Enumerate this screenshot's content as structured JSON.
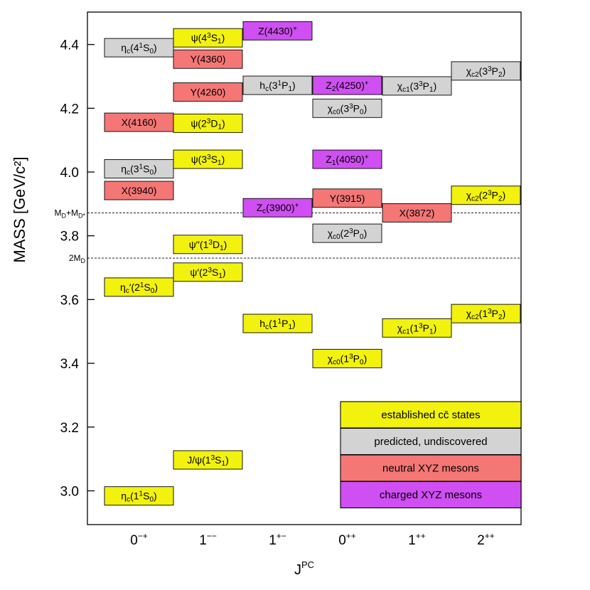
{
  "chart_data": {
    "type": "level-diagram",
    "title": "",
    "xlabel": "J^PC",
    "ylabel": "MASS  [GeV/c²]",
    "ylim": [
      2.9,
      4.48
    ],
    "yticks": [
      3.0,
      3.2,
      3.4,
      3.6,
      3.8,
      4.0,
      4.2,
      4.4
    ],
    "categories": [
      "0−+",
      "1−−",
      "1+−",
      "0++",
      "1++",
      "2++"
    ],
    "category_superscripts": [
      "−+",
      "−−",
      "+−",
      "++",
      "++",
      "++"
    ],
    "category_bases": [
      "0",
      "1",
      "1",
      "0",
      "1",
      "2"
    ],
    "thresholds": [
      {
        "name": "MD+MD*",
        "label": "MD+MD*",
        "mass": 3.872
      },
      {
        "name": "2MD",
        "label": "2MD",
        "mass": 3.73
      }
    ],
    "states": [
      {
        "name": "ηc(1¹S0)",
        "category": "0−+",
        "mass": 2.984,
        "type": "established"
      },
      {
        "name": "ηc′(2¹S0)",
        "category": "0−+",
        "mass": 3.639,
        "type": "established"
      },
      {
        "name": "X(3940)",
        "category": "0−+",
        "mass": 3.942,
        "type": "neutral"
      },
      {
        "name": "ηc(3¹S0)",
        "category": "0−+",
        "mass": 4.01,
        "type": "predicted"
      },
      {
        "name": "X(4160)",
        "category": "0−+",
        "mass": 4.156,
        "type": "neutral"
      },
      {
        "name": "ηc(4¹S0)",
        "category": "0−+",
        "mass": 4.39,
        "type": "predicted"
      },
      {
        "name": "J/ψ(1³S1)",
        "category": "1−−",
        "mass": 3.097,
        "type": "established"
      },
      {
        "name": "ψ′(2³S1)",
        "category": "1−−",
        "mass": 3.686,
        "type": "established"
      },
      {
        "name": "ψ′′(1³D1)",
        "category": "1−−",
        "mass": 3.773,
        "type": "established"
      },
      {
        "name": "ψ(3³S1)",
        "category": "1−−",
        "mass": 4.04,
        "type": "established"
      },
      {
        "name": "ψ(2³D1)",
        "category": "1−−",
        "mass": 4.153,
        "type": "established"
      },
      {
        "name": "Y(4260)",
        "category": "1−−",
        "mass": 4.251,
        "type": "neutral"
      },
      {
        "name": "Y(4360)",
        "category": "1−−",
        "mass": 4.354,
        "type": "neutral"
      },
      {
        "name": "ψ(4³S1)",
        "category": "1−−",
        "mass": 4.421,
        "type": "established"
      },
      {
        "name": "hc(1¹P1)",
        "category": "1+−",
        "mass": 3.525,
        "type": "established"
      },
      {
        "name": "Zc(3900)⁺",
        "category": "1+−",
        "mass": 3.888,
        "type": "charged"
      },
      {
        "name": "hc(3¹P1)",
        "category": "1+−",
        "mass": 4.272,
        "type": "predicted"
      },
      {
        "name": "Z(4430)⁺",
        "category": "1+−",
        "mass": 4.443,
        "type": "charged"
      },
      {
        "name": "χc0(1³P0)",
        "category": "0++",
        "mass": 3.415,
        "type": "established"
      },
      {
        "name": "χc0(2³P0)",
        "category": "0++",
        "mass": 3.808,
        "type": "predicted"
      },
      {
        "name": "Y(3915)",
        "category": "0++",
        "mass": 3.918,
        "type": "neutral"
      },
      {
        "name": "Z1(4050)⁺",
        "category": "0++",
        "mass": 4.04,
        "type": "charged"
      },
      {
        "name": "χc0(3³P0)",
        "category": "0++",
        "mass": 4.2,
        "type": "predicted"
      },
      {
        "name": "Z2(4250)⁺",
        "category": "0++",
        "mass": 4.272,
        "type": "charged"
      },
      {
        "name": "χc1(1³P1)",
        "category": "1++",
        "mass": 3.511,
        "type": "established"
      },
      {
        "name": "X(3872)",
        "category": "1++",
        "mass": 3.872,
        "type": "neutral"
      },
      {
        "name": "χc1(3³P1)",
        "category": "1++",
        "mass": 4.27,
        "type": "predicted"
      },
      {
        "name": "χc2(1³P2)",
        "category": "2++",
        "mass": 3.556,
        "type": "established"
      },
      {
        "name": "χc2(2³P2)",
        "category": "2++",
        "mass": 3.927,
        "type": "established"
      },
      {
        "name": "χc2(3³P2)",
        "category": "2++",
        "mass": 4.317,
        "type": "predicted"
      }
    ],
    "legend": {
      "placement": "bottom-right",
      "entries": [
        {
          "type": "established",
          "label": "established cc̄ states"
        },
        {
          "type": "predicted",
          "label": "predicted, undiscovered"
        },
        {
          "type": "neutral",
          "label": "neutral XYZ mesons"
        },
        {
          "type": "charged",
          "label": "charged XYZ mesons"
        }
      ]
    },
    "colors": {
      "established": "#f2f20e",
      "predicted": "#d3d3d3",
      "neutral": "#f47775",
      "charged": "#cf4ff2"
    }
  }
}
